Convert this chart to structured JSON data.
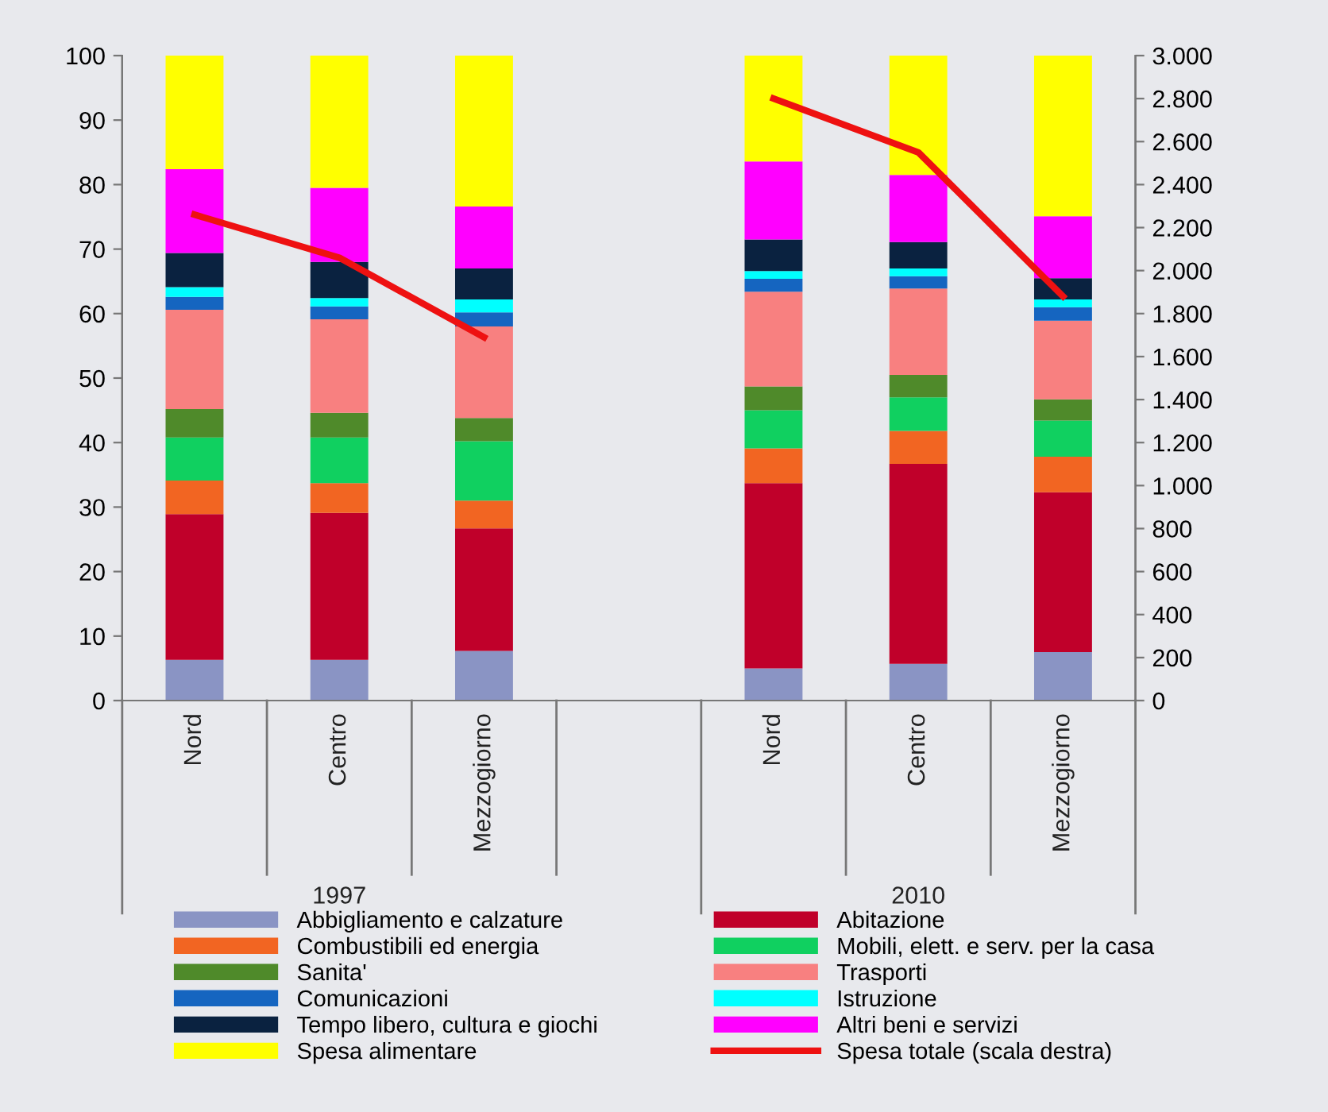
{
  "chart_data": {
    "type": "bar",
    "stacked": true,
    "categories": [
      "Nord",
      "Centro",
      "Mezzogiorno",
      null,
      "Nord",
      "Centro",
      "Mezzogiorno"
    ],
    "series": [
      {
        "name": "Abbigliamento e calzature",
        "color": "#8a94c4",
        "values": [
          6.3,
          6.3,
          7.7,
          null,
          5.0,
          5.7,
          7.5
        ]
      },
      {
        "name": "Abitazione",
        "color": "#c0002a",
        "values": [
          22.6,
          22.8,
          19.0,
          null,
          28.7,
          31.0,
          24.8
        ]
      },
      {
        "name": "Combustibili ed energia",
        "color": "#f26522",
        "values": [
          5.2,
          4.6,
          4.3,
          null,
          5.4,
          5.1,
          5.5
        ]
      },
      {
        "name": "Mobili, elett. e serv. per la casa",
        "color": "#10d060",
        "values": [
          6.7,
          7.1,
          9.2,
          null,
          5.9,
          5.2,
          5.6
        ]
      },
      {
        "name": "Sanita'",
        "color": "#4f8a2a",
        "values": [
          4.4,
          3.8,
          3.6,
          null,
          3.7,
          3.5,
          3.3
        ]
      },
      {
        "name": "Trasporti",
        "color": "#f88080",
        "values": [
          15.4,
          14.5,
          14.2,
          null,
          14.7,
          13.4,
          12.2
        ]
      },
      {
        "name": "Comunicazioni",
        "color": "#1565c0",
        "values": [
          2.0,
          2.0,
          2.2,
          null,
          2.0,
          1.9,
          2.1
        ]
      },
      {
        "name": "Istruzione",
        "color": "#00ffff",
        "values": [
          1.5,
          1.3,
          2.0,
          null,
          1.2,
          1.2,
          1.2
        ]
      },
      {
        "name": "Tempo libero, cultura e giochi",
        "color": "#0a2240",
        "values": [
          5.3,
          5.6,
          4.8,
          null,
          4.9,
          4.1,
          3.3
        ]
      },
      {
        "name": "Altri beni e servizi",
        "color": "#ff00ff",
        "values": [
          13.0,
          11.5,
          9.6,
          null,
          12.1,
          10.4,
          9.6
        ]
      },
      {
        "name": "Spesa alimentare",
        "color": "#ffff00",
        "values": [
          17.6,
          20.5,
          23.4,
          null,
          16.4,
          18.5,
          24.9
        ]
      },
      {
        "name": "Spesa totale (scala destra)",
        "color": "#ee1111",
        "type": "line",
        "axis": "y2",
        "values": [
          2260,
          2060,
          1690,
          null,
          2800,
          2550,
          1880
        ]
      }
    ],
    "ylim": [
      0,
      100
    ],
    "yticks": [
      0,
      10,
      20,
      30,
      40,
      50,
      60,
      70,
      80,
      90,
      100
    ],
    "y2lim": [
      0,
      3000
    ],
    "y2ticks": [
      0,
      {
        "value": 200,
        "label": "200"
      },
      {
        "value": 400,
        "label": "400"
      },
      {
        "value": 600,
        "label": "600"
      },
      {
        "value": 800,
        "label": "800"
      },
      {
        "value": 1000,
        "label": "1.000"
      },
      {
        "value": 1200,
        "label": "1.200"
      },
      {
        "value": 1400,
        "label": "1.400"
      },
      {
        "value": 1600,
        "label": "1.600"
      },
      {
        "value": 1800,
        "label": "1.800"
      },
      {
        "value": 2000,
        "label": "2.000"
      },
      {
        "value": 2200,
        "label": "2.200"
      },
      {
        "value": 2400,
        "label": "2.400"
      },
      {
        "value": 2600,
        "label": "2.600"
      },
      {
        "value": 2800,
        "label": "2.800"
      },
      {
        "value": 3000,
        "label": "3.000"
      }
    ],
    "annotations": [
      "1997",
      "2010"
    ],
    "grid": false,
    "legend": "bottom",
    "marker": "none",
    "line_style": "solid"
  }
}
